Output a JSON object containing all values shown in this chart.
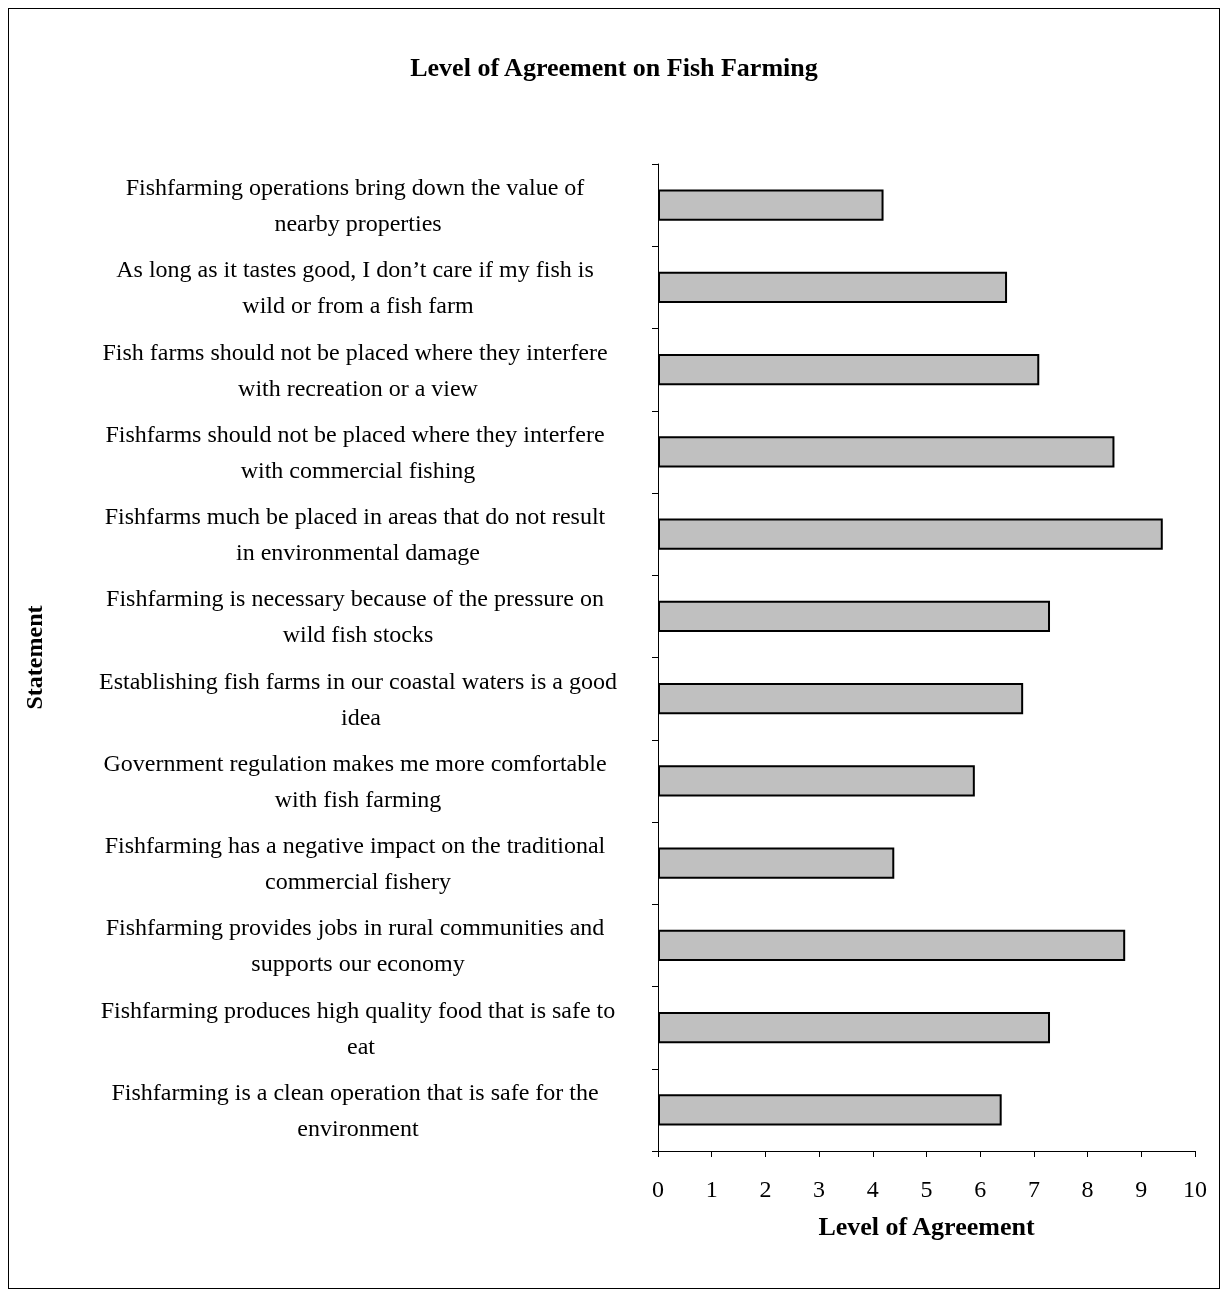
{
  "chart_data": {
    "type": "bar",
    "orientation": "horizontal",
    "title": "Level of Agreement on Fish Farming",
    "xlabel": "Level of Agreement",
    "ylabel": "Statement",
    "categories": [
      "Fishfarming operations bring down the value of nearby properties",
      "As long as it tastes good, I don’t care if my fish is wild or from a fish farm",
      "Fish farms should not be placed where they interfere with recreation or a view",
      "Fishfarms should not be placed where they interfere with commercial fishing",
      "Fishfarms much be placed in areas that do not result in environmental damage",
      "Fishfarming is necessary because of the pressure on wild fish stocks",
      "Establishing fish farms in our coastal waters is a good idea",
      "Government regulation makes me more comfortable with fish farming",
      "Fishfarming has a negative impact on the traditional commercial fishery",
      "Fishfarming provides jobs in rural communities and supports our economy",
      "Fishfarming produces high quality food that is safe to eat",
      "Fishfarming is a clean operation that is safe for the environment"
    ],
    "values": [
      4.2,
      6.5,
      7.1,
      8.5,
      9.4,
      7.3,
      6.8,
      5.9,
      4.4,
      8.7,
      7.3,
      6.4
    ],
    "color": "#c0c0c0",
    "xlim": [
      0,
      10
    ],
    "xticks": [
      0,
      1,
      2,
      3,
      4,
      5,
      6,
      7,
      8,
      9,
      10
    ],
    "grid": false
  }
}
